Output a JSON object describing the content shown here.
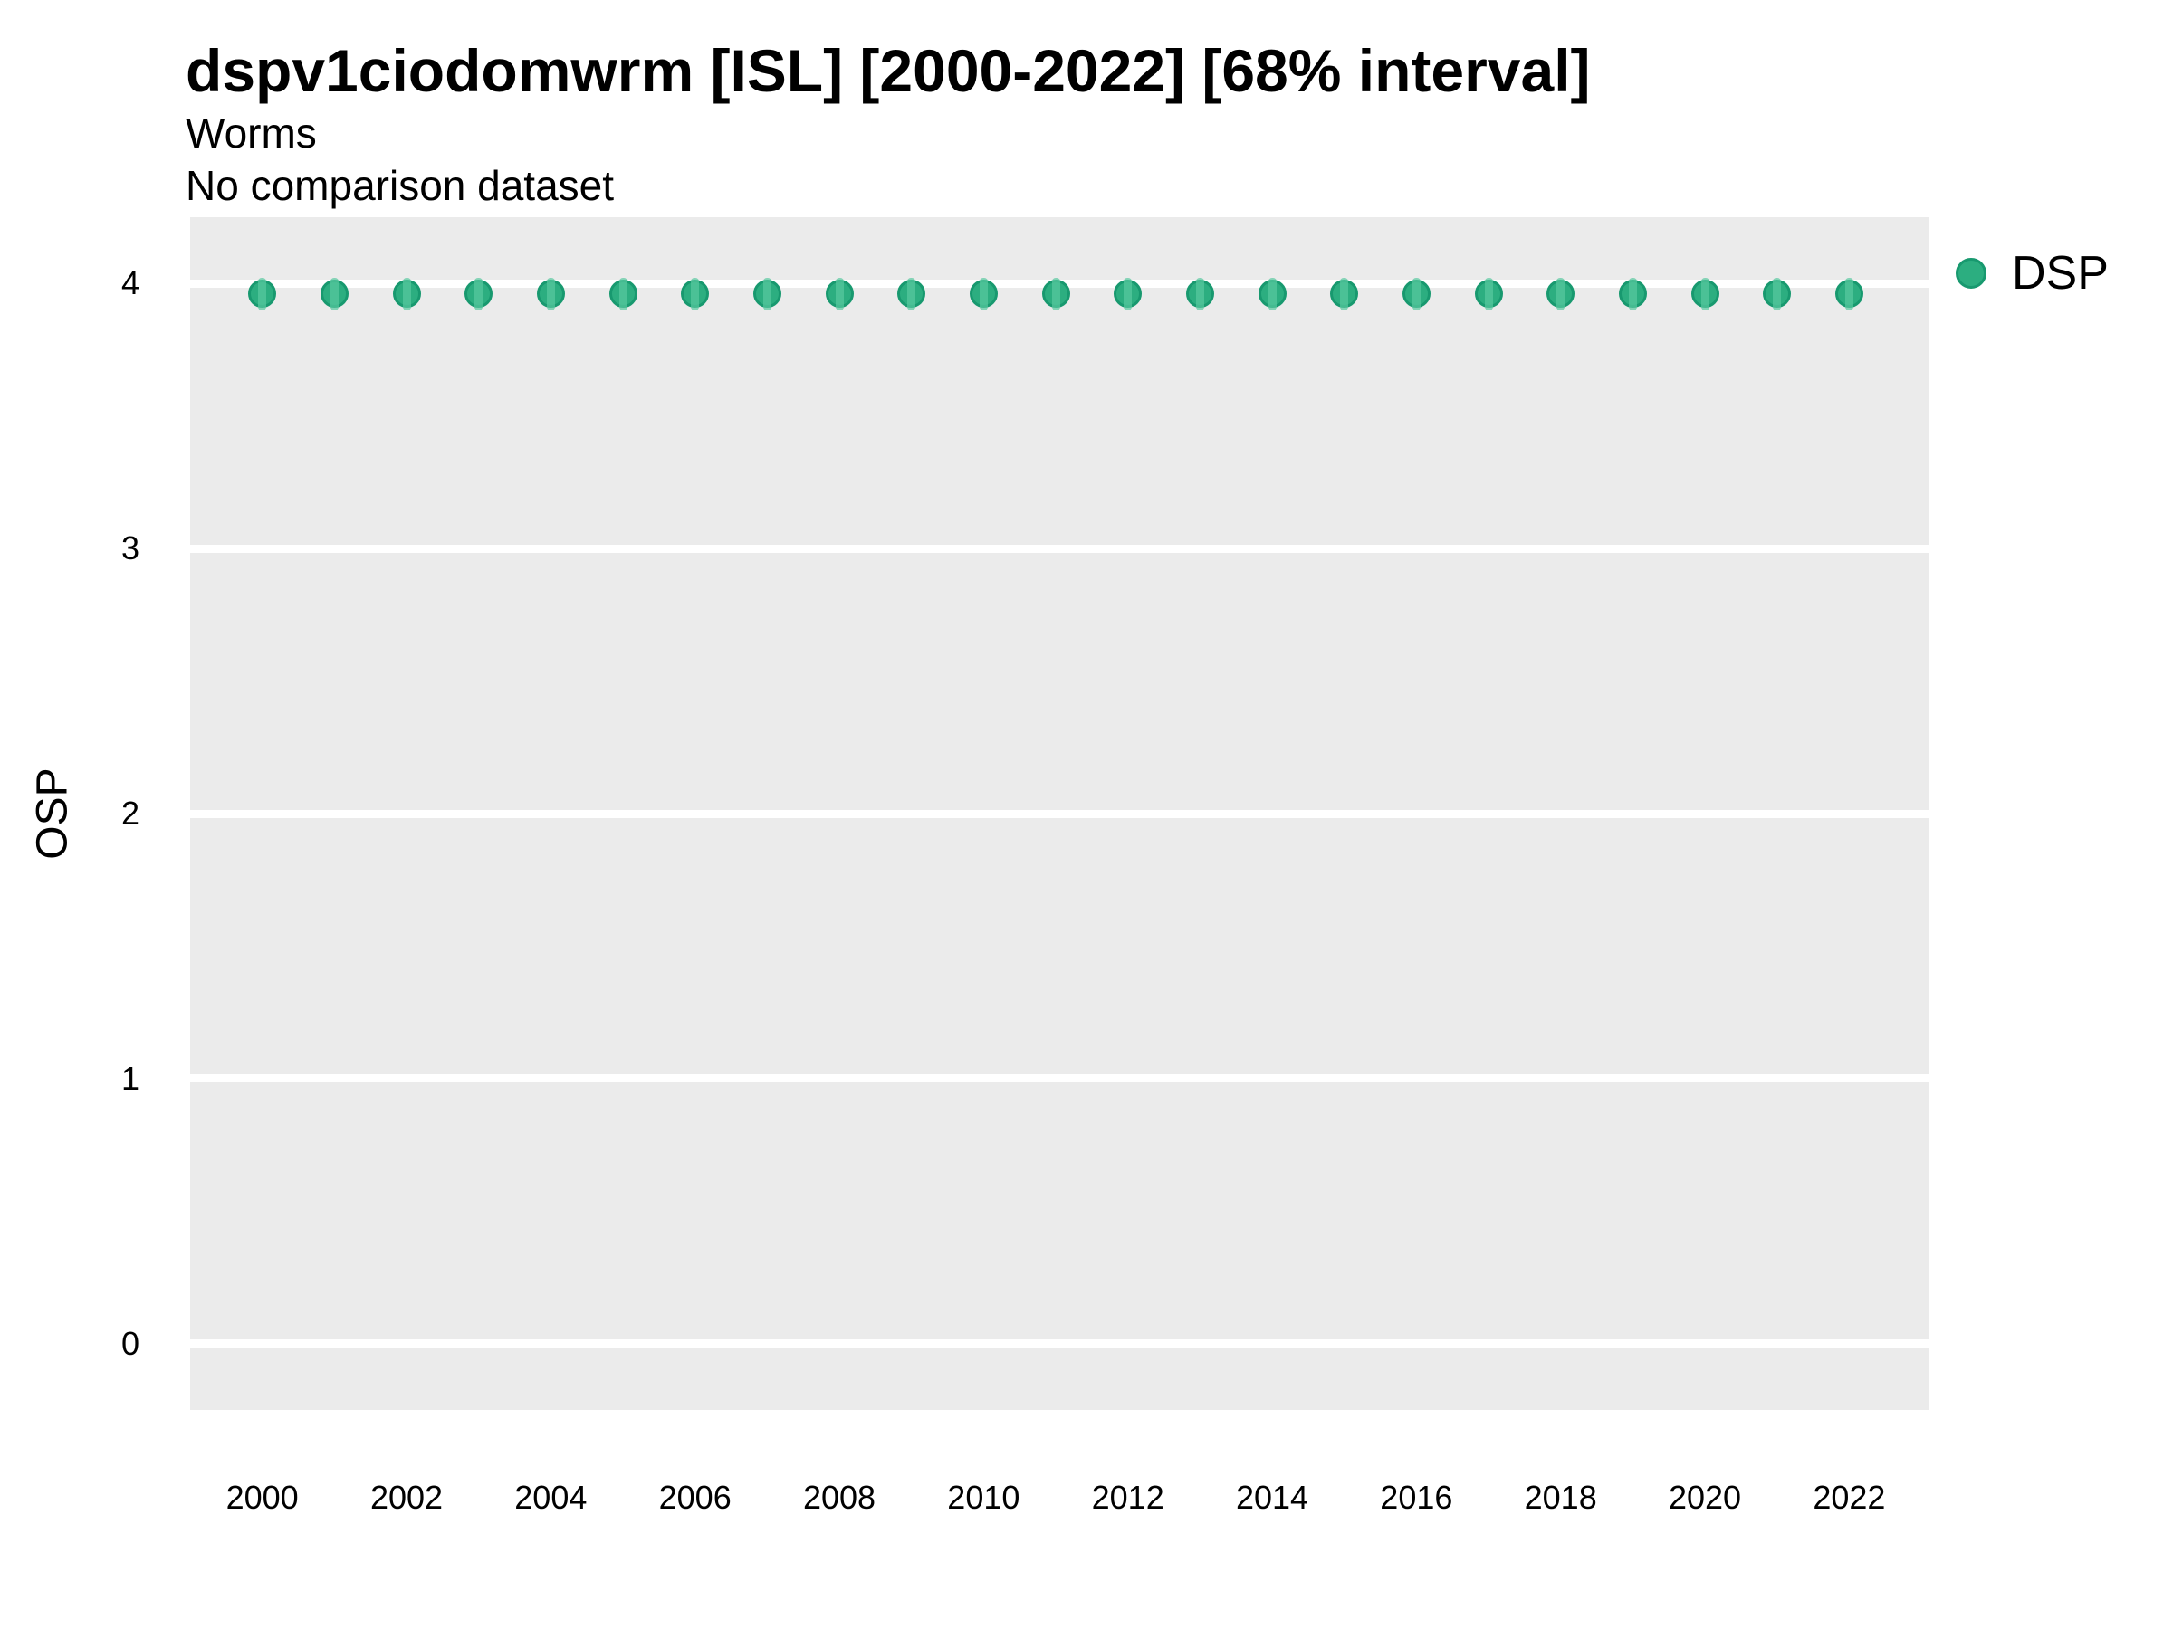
{
  "header": {
    "title": "dspv1ciodomwrm [ISL] [2000-2022] [68% interval]",
    "subtitle": "Worms",
    "note": "No comparison dataset"
  },
  "chart_data": {
    "type": "scatter",
    "title": "dspv1ciodomwrm [ISL] [2000-2022] [68% interval]",
    "subtitle": "Worms",
    "note": "No comparison dataset",
    "xlabel": "",
    "ylabel": "OSP",
    "legend_position": "right-top",
    "grid": "horizontal-major-only",
    "x_ticks": [
      2000,
      2002,
      2004,
      2006,
      2008,
      2010,
      2012,
      2014,
      2016,
      2018,
      2020,
      2022
    ],
    "y_ticks": [
      0,
      1,
      2,
      3,
      4
    ],
    "xlim": [
      1999.0,
      2023.1
    ],
    "ylim": [
      -0.25,
      4.25
    ],
    "interval_label": "68% interval",
    "series": [
      {
        "name": "DSP",
        "x": [
          2000,
          2001,
          2002,
          2003,
          2004,
          2005,
          2006,
          2007,
          2008,
          2009,
          2010,
          2011,
          2012,
          2013,
          2014,
          2015,
          2016,
          2017,
          2018,
          2019,
          2020,
          2021,
          2022
        ],
        "y": [
          3.96,
          3.96,
          3.96,
          3.96,
          3.96,
          3.96,
          3.96,
          3.96,
          3.96,
          3.96,
          3.96,
          3.96,
          3.96,
          3.96,
          3.96,
          3.96,
          3.96,
          3.96,
          3.96,
          3.96,
          3.96,
          3.96,
          3.96
        ],
        "interval_low": [
          3.9,
          3.9,
          3.9,
          3.9,
          3.9,
          3.9,
          3.9,
          3.9,
          3.9,
          3.9,
          3.9,
          3.9,
          3.9,
          3.9,
          3.9,
          3.9,
          3.9,
          3.9,
          3.9,
          3.9,
          3.9,
          3.9,
          3.9
        ],
        "interval_high": [
          4.02,
          4.02,
          4.02,
          4.02,
          4.02,
          4.02,
          4.02,
          4.02,
          4.02,
          4.02,
          4.02,
          4.02,
          4.02,
          4.02,
          4.02,
          4.02,
          4.02,
          4.02,
          4.02,
          4.02,
          4.02,
          4.02,
          4.02
        ]
      }
    ],
    "legend": [
      {
        "label": "DSP",
        "color": "#2CAE80"
      }
    ],
    "colors": {
      "point_fill": "#2CAE80",
      "point_stroke": "#18996F",
      "interval_line": "#58C9A0",
      "panel_bg": "#EBEBEB",
      "gridline": "#FFFFFF",
      "text": "#000000"
    }
  }
}
